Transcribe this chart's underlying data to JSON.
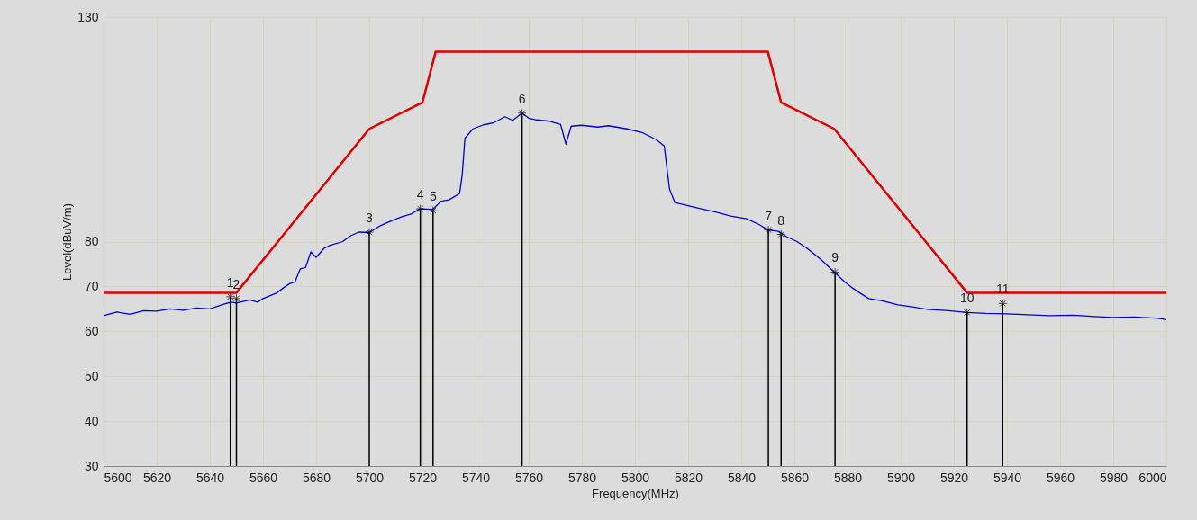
{
  "chart_data": {
    "type": "line",
    "xlabel": "Frequency(MHz)",
    "ylabel": "Level(dBuV/m)",
    "xlim": [
      5600,
      6000
    ],
    "xticks": [
      5600,
      5620,
      5640,
      5660,
      5680,
      5700,
      5720,
      5740,
      5760,
      5780,
      5800,
      5820,
      5840,
      5860,
      5880,
      5900,
      5920,
      5940,
      5960,
      5980,
      6000
    ],
    "ylim": [
      30,
      130
    ],
    "yticks": [
      30,
      40,
      50,
      60,
      70,
      80,
      130
    ],
    "grid": true,
    "line_style": "solid",
    "marker": "none",
    "series": [
      {
        "color": "#e00000",
        "x": [
          5600,
          5650,
          5700,
          5720,
          5725,
          5850,
          5855,
          5875,
          5925,
          6000
        ],
        "values": [
          68.6,
          68.6,
          105.1,
          111,
          122.3,
          122.3,
          111,
          105.1,
          68.6,
          68.6
        ]
      },
      {
        "color": "#0000cc",
        "x": [
          5600,
          5605,
          5610,
          5615,
          5620,
          5625,
          5630,
          5635,
          5640,
          5645,
          5648,
          5650,
          5655,
          5658,
          5660,
          5665,
          5668,
          5670,
          5672,
          5674,
          5676,
          5678,
          5680,
          5683,
          5685,
          5690,
          5693,
          5696,
          5700,
          5704,
          5707,
          5712,
          5716,
          5719,
          5724,
          5727,
          5730,
          5734,
          5735,
          5736,
          5739,
          5743,
          5747,
          5751,
          5754,
          5757.5,
          5760,
          5763,
          5768,
          5772,
          5774,
          5776,
          5780,
          5786,
          5790,
          5797,
          5803,
          5808,
          5811,
          5813,
          5815,
          5820,
          5825,
          5831,
          5836,
          5842,
          5847,
          5850,
          5854,
          5857,
          5861,
          5865,
          5870,
          5875,
          5879,
          5882,
          5885,
          5888,
          5893,
          5899,
          5905,
          5910,
          5918,
          5925,
          5932,
          5940,
          5948,
          5956,
          5965,
          5973,
          5980,
          5988,
          5997,
          6000
        ],
        "values": [
          63.5,
          64.3,
          63.8,
          64.6,
          64.5,
          65.0,
          64.7,
          65.2,
          65.0,
          66.0,
          66.5,
          66.3,
          67.0,
          66.5,
          67.3,
          68.5,
          69.8,
          70.6,
          71.0,
          73.9,
          74.2,
          77.7,
          76.5,
          78.5,
          79.1,
          80.0,
          81.3,
          82.1,
          82.0,
          83.5,
          84.3,
          85.5,
          86.2,
          87.3,
          87.2,
          89.0,
          89.3,
          90.7,
          95,
          103,
          105.1,
          106.0,
          106.5,
          107.8,
          107.0,
          108.6,
          107.5,
          107.1,
          106.8,
          106.1,
          101.7,
          105.7,
          105.9,
          105.5,
          105.8,
          105.1,
          104.2,
          102.7,
          101.3,
          91.7,
          88.7,
          88.0,
          87.3,
          86.5,
          85.7,
          85.1,
          83.7,
          82.6,
          82.3,
          81.1,
          80.0,
          78.4,
          76.0,
          73.2,
          71.0,
          69.6,
          68.4,
          67.3,
          66.8,
          65.9,
          65.4,
          64.9,
          64.6,
          64.2,
          64.0,
          63.9,
          63.7,
          63.5,
          63.6,
          63.3,
          63.1,
          63.2,
          62.9,
          62.6
        ]
      },
      {
        "type": "lollipop",
        "color": "#000000",
        "marker": "cross",
        "x": [
          5647.7,
          5650,
          5700,
          5719.2,
          5724,
          5757.5,
          5850.2,
          5855,
          5875.3,
          5925,
          5938.4
        ],
        "values": [
          67.7,
          67.3,
          82.1,
          87.3,
          86.9,
          108.6,
          82.6,
          81.6,
          73.2,
          64.2,
          66.2
        ]
      }
    ],
    "annotations": [
      {
        "text": "1",
        "x": 5647.7,
        "y": 67.7
      },
      {
        "text": "2",
        "x": 5650,
        "y": 67.3
      },
      {
        "text": "3",
        "x": 5700,
        "y": 82.1
      },
      {
        "text": "4",
        "x": 5719.2,
        "y": 87.3
      },
      {
        "text": "5",
        "x": 5724,
        "y": 86.9
      },
      {
        "text": "6",
        "x": 5757.5,
        "y": 108.6
      },
      {
        "text": "7",
        "x": 5850.2,
        "y": 82.6
      },
      {
        "text": "8",
        "x": 5855,
        "y": 81.6
      },
      {
        "text": "9",
        "x": 5875.3,
        "y": 73.2
      },
      {
        "text": "10",
        "x": 5925,
        "y": 64.2
      },
      {
        "text": "11",
        "x": 5938.4,
        "y": 66.2
      }
    ]
  }
}
